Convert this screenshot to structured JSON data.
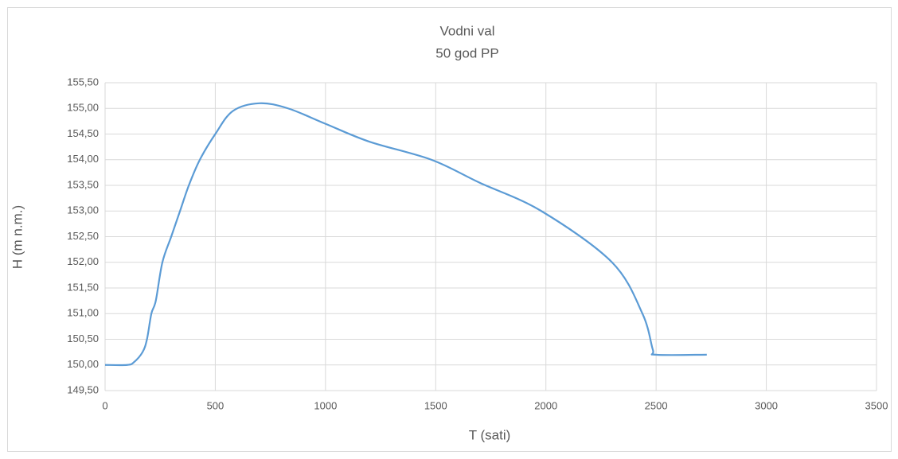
{
  "chart_data": {
    "type": "line",
    "title": "Vodni val",
    "subtitle": "50 god PP",
    "x_label": "T (sati)",
    "y_label": "H (m n.m.)",
    "x": [
      0,
      100,
      130,
      170,
      190,
      210,
      230,
      260,
      300,
      340,
      380,
      430,
      500,
      580,
      700,
      830,
      1000,
      1200,
      1480,
      1700,
      1979,
      2300,
      2438,
      2485,
      2500,
      2730
    ],
    "values": [
      150,
      150,
      150.05,
      150.25,
      150.5,
      151,
      151.25,
      152,
      152.5,
      153,
      153.5,
      154,
      154.5,
      154.95,
      155.1,
      155,
      154.7,
      154.35,
      154,
      153.55,
      153,
      152,
      151,
      150.3,
      150.2,
      150.2
    ],
    "color": "#5b9bd5",
    "xlim": [
      0,
      3500
    ],
    "xticks": [
      0,
      500,
      1000,
      1500,
      2000,
      2500,
      3000,
      3500
    ],
    "ylim": [
      149.5,
      155.5
    ],
    "yticks": [
      {
        "value": 149.5,
        "label": "149,50"
      },
      {
        "value": 150,
        "label": "150,00"
      },
      {
        "value": 150.5,
        "label": "150,50"
      },
      {
        "value": 151,
        "label": "151,00"
      },
      {
        "value": 151.5,
        "label": "151,50"
      },
      {
        "value": 152,
        "label": "152,00"
      },
      {
        "value": 152.5,
        "label": "152,50"
      },
      {
        "value": 153,
        "label": "153,00"
      },
      {
        "value": 153.5,
        "label": "153,50"
      },
      {
        "value": 154,
        "label": "154,00"
      },
      {
        "value": 154.5,
        "label": "154,50"
      },
      {
        "value": 155,
        "label": "155,00"
      },
      {
        "value": 155.5,
        "label": "155,50"
      }
    ],
    "grid": true
  }
}
